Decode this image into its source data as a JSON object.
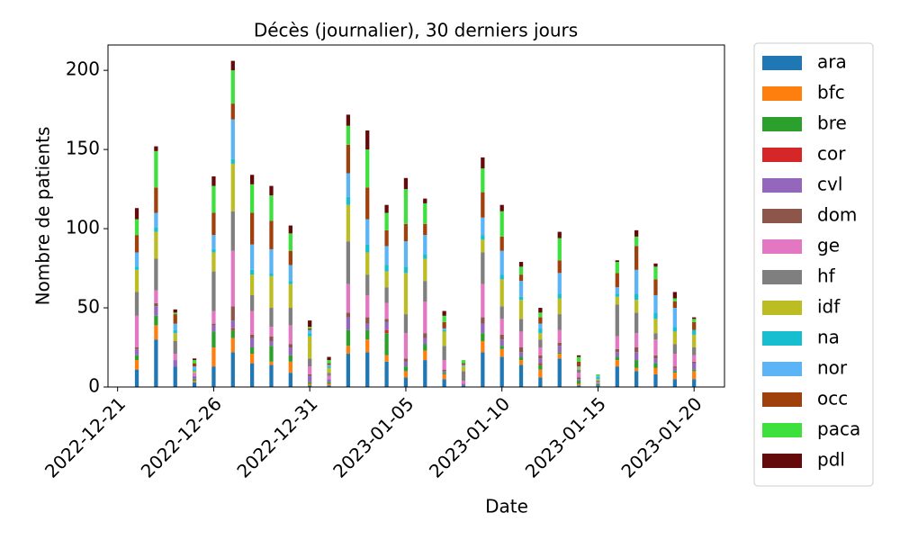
{
  "chart_data": {
    "type": "stacked-bar",
    "title": "Décès (journalier), 30 derniers jours",
    "xlabel": "Date",
    "ylabel": "Nombre de patients",
    "x": [
      "2022-12-22",
      "2022-12-23",
      "2022-12-24",
      "2022-12-25",
      "2022-12-26",
      "2022-12-27",
      "2022-12-28",
      "2022-12-29",
      "2022-12-30",
      "2022-12-31",
      "2023-01-01",
      "2023-01-02",
      "2023-01-03",
      "2023-01-04",
      "2023-01-05",
      "2023-01-06",
      "2023-01-07",
      "2023-01-08",
      "2023-01-09",
      "2023-01-10",
      "2023-01-11",
      "2023-01-12",
      "2023-01-13",
      "2023-01-14",
      "2023-01-15",
      "2023-01-16",
      "2023-01-17",
      "2023-01-18",
      "2023-01-19",
      "2023-01-20"
    ],
    "xlim": [
      "2022-12-20T12:00",
      "2023-01-21T14:00"
    ],
    "xticks": [
      "2022-12-21",
      "2022-12-26",
      "2022-12-31",
      "2023-01-05",
      "2023-01-10",
      "2023-01-15",
      "2023-01-20"
    ],
    "ylim": [
      0,
      216
    ],
    "yticks": [
      0,
      50,
      100,
      150,
      200
    ],
    "legend": "outside-right",
    "series": [
      {
        "name": "ara",
        "color": "#1f77b4",
        "values": [
          11,
          30,
          13,
          3,
          13,
          22,
          15,
          14,
          9,
          1,
          1,
          21,
          22,
          16,
          6,
          17,
          5,
          1,
          22,
          19,
          14,
          6,
          18,
          1,
          1,
          13,
          10,
          8,
          5,
          5
        ]
      },
      {
        "name": "bfc",
        "color": "#ff7f0e",
        "values": [
          6,
          9,
          0,
          1,
          12,
          9,
          6,
          2,
          7,
          1,
          1,
          5,
          8,
          4,
          4,
          6,
          3,
          0,
          7,
          5,
          3,
          5,
          3,
          1,
          0,
          4,
          2,
          4,
          4,
          5
        ]
      },
      {
        "name": "bre",
        "color": "#2ca02c",
        "values": [
          3,
          6,
          0,
          1,
          10,
          5,
          4,
          10,
          4,
          1,
          1,
          10,
          6,
          14,
          3,
          4,
          1,
          0,
          5,
          2,
          2,
          3,
          1,
          2,
          1,
          2,
          5,
          3,
          1,
          1
        ]
      },
      {
        "name": "cor",
        "color": "#d62728",
        "values": [
          0,
          0,
          0,
          0,
          0,
          1,
          0,
          0,
          0,
          0,
          0,
          0,
          0,
          2,
          0,
          0,
          0,
          0,
          0,
          0,
          0,
          1,
          0,
          0,
          0,
          0,
          0,
          0,
          0,
          0
        ]
      },
      {
        "name": "cvl",
        "color": "#9467bd",
        "values": [
          4,
          6,
          4,
          2,
          4,
          5,
          6,
          3,
          5,
          4,
          2,
          8,
          4,
          5,
          3,
          4,
          1,
          1,
          6,
          4,
          3,
          3,
          4,
          1,
          0,
          3,
          5,
          3,
          2,
          4
        ]
      },
      {
        "name": "dom",
        "color": "#8c564b",
        "values": [
          1,
          2,
          0,
          0,
          1,
          9,
          2,
          3,
          2,
          1,
          0,
          3,
          4,
          2,
          2,
          3,
          1,
          0,
          4,
          3,
          3,
          2,
          2,
          1,
          0,
          2,
          3,
          2,
          1,
          1
        ]
      },
      {
        "name": "ge",
        "color": "#e377c2",
        "values": [
          20,
          8,
          4,
          2,
          8,
          35,
          15,
          6,
          12,
          5,
          2,
          18,
          14,
          10,
          16,
          20,
          6,
          2,
          21,
          10,
          10,
          5,
          8,
          3,
          1,
          8,
          9,
          10,
          8,
          4
        ]
      },
      {
        "name": "hf",
        "color": "#7f7f7f",
        "values": [
          15,
          20,
          8,
          0,
          25,
          25,
          10,
          12,
          11,
          5,
          2,
          27,
          13,
          10,
          12,
          13,
          9,
          6,
          20,
          8,
          8,
          5,
          10,
          2,
          1,
          20,
          13,
          4,
          6,
          5
        ]
      },
      {
        "name": "idf",
        "color": "#bcbd22",
        "values": [
          14,
          17,
          5,
          1,
          12,
          30,
          13,
          20,
          15,
          14,
          3,
          23,
          14,
          10,
          26,
          14,
          9,
          3,
          8,
          17,
          12,
          4,
          10,
          1,
          1,
          5,
          8,
          9,
          8,
          8
        ]
      },
      {
        "name": "na",
        "color": "#17becf",
        "values": [
          2,
          3,
          2,
          1,
          2,
          3,
          3,
          2,
          2,
          2,
          1,
          5,
          5,
          4,
          4,
          3,
          1,
          0,
          3,
          3,
          2,
          3,
          3,
          0,
          1,
          2,
          4,
          4,
          3,
          3
        ]
      },
      {
        "name": "nor",
        "color": "#5ab4f5",
        "values": [
          9,
          9,
          4,
          2,
          9,
          25,
          16,
          15,
          10,
          2,
          1,
          15,
          16,
          12,
          16,
          12,
          1,
          1,
          11,
          15,
          10,
          3,
          13,
          1,
          1,
          4,
          15,
          11,
          12,
          0
        ]
      },
      {
        "name": "occ",
        "color": "#a0410d",
        "values": [
          11,
          16,
          6,
          2,
          14,
          10,
          20,
          18,
          9,
          1,
          1,
          18,
          20,
          10,
          11,
          7,
          4,
          1,
          16,
          9,
          4,
          4,
          8,
          3,
          0,
          9,
          15,
          10,
          4,
          5
        ]
      },
      {
        "name": "paca",
        "color": "#3ee03e",
        "values": [
          10,
          23,
          1,
          2,
          17,
          21,
          18,
          16,
          11,
          1,
          2,
          12,
          24,
          11,
          22,
          13,
          4,
          2,
          15,
          16,
          5,
          3,
          14,
          3,
          1,
          7,
          6,
          8,
          2,
          2
        ]
      },
      {
        "name": "pdl",
        "color": "#640a0a",
        "values": [
          7,
          3,
          2,
          1,
          6,
          6,
          6,
          6,
          5,
          4,
          2,
          7,
          12,
          5,
          7,
          3,
          3,
          0,
          7,
          4,
          3,
          3,
          4,
          1,
          0,
          1,
          4,
          2,
          4,
          1
        ]
      }
    ]
  }
}
